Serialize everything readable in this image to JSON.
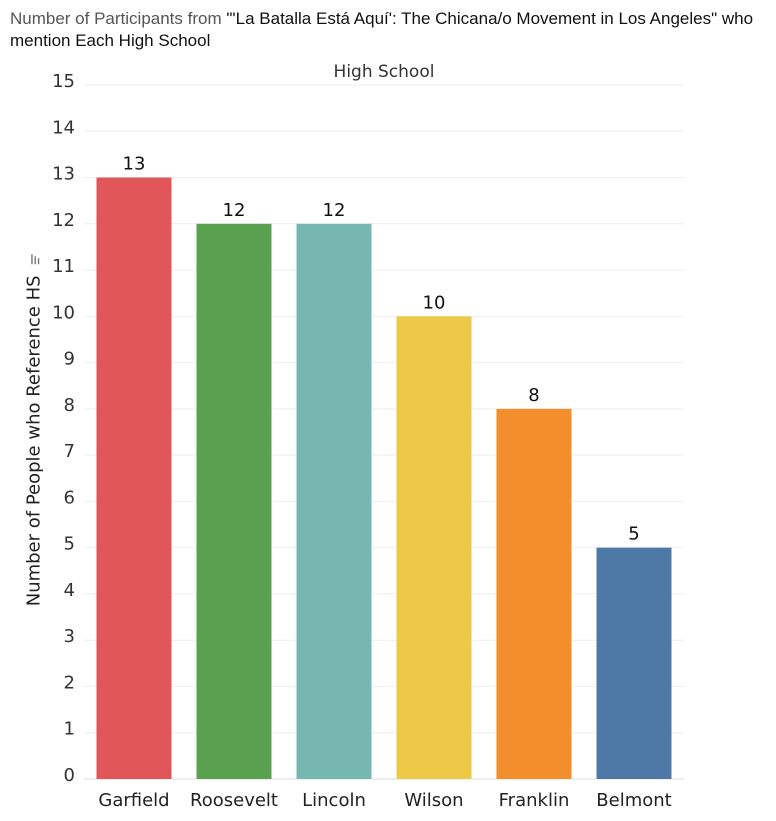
{
  "title": {
    "lead": "Number of Participants from ",
    "main": "\"'La Batalla Está Aquí': The Chicana/o Movement in Los Angeles\" who mention Each High School"
  },
  "chart_data": {
    "type": "bar",
    "column_header": "High School",
    "ylabel": "Number of People who Reference HS",
    "categories": [
      "Garfield",
      "Roosevelt",
      "Lincoln",
      "Wilson",
      "Franklin",
      "Belmont"
    ],
    "values": [
      13,
      12,
      12,
      10,
      8,
      5
    ],
    "colors": [
      "#e15759",
      "#59a14f",
      "#76b7b2",
      "#edc948",
      "#f28e2b",
      "#4e79a7"
    ],
    "ylim": [
      0,
      15
    ],
    "yticks": [
      0,
      1,
      2,
      3,
      4,
      5,
      6,
      7,
      8,
      9,
      10,
      11,
      12,
      13,
      14,
      15
    ],
    "grid": true,
    "data_labels": true
  }
}
